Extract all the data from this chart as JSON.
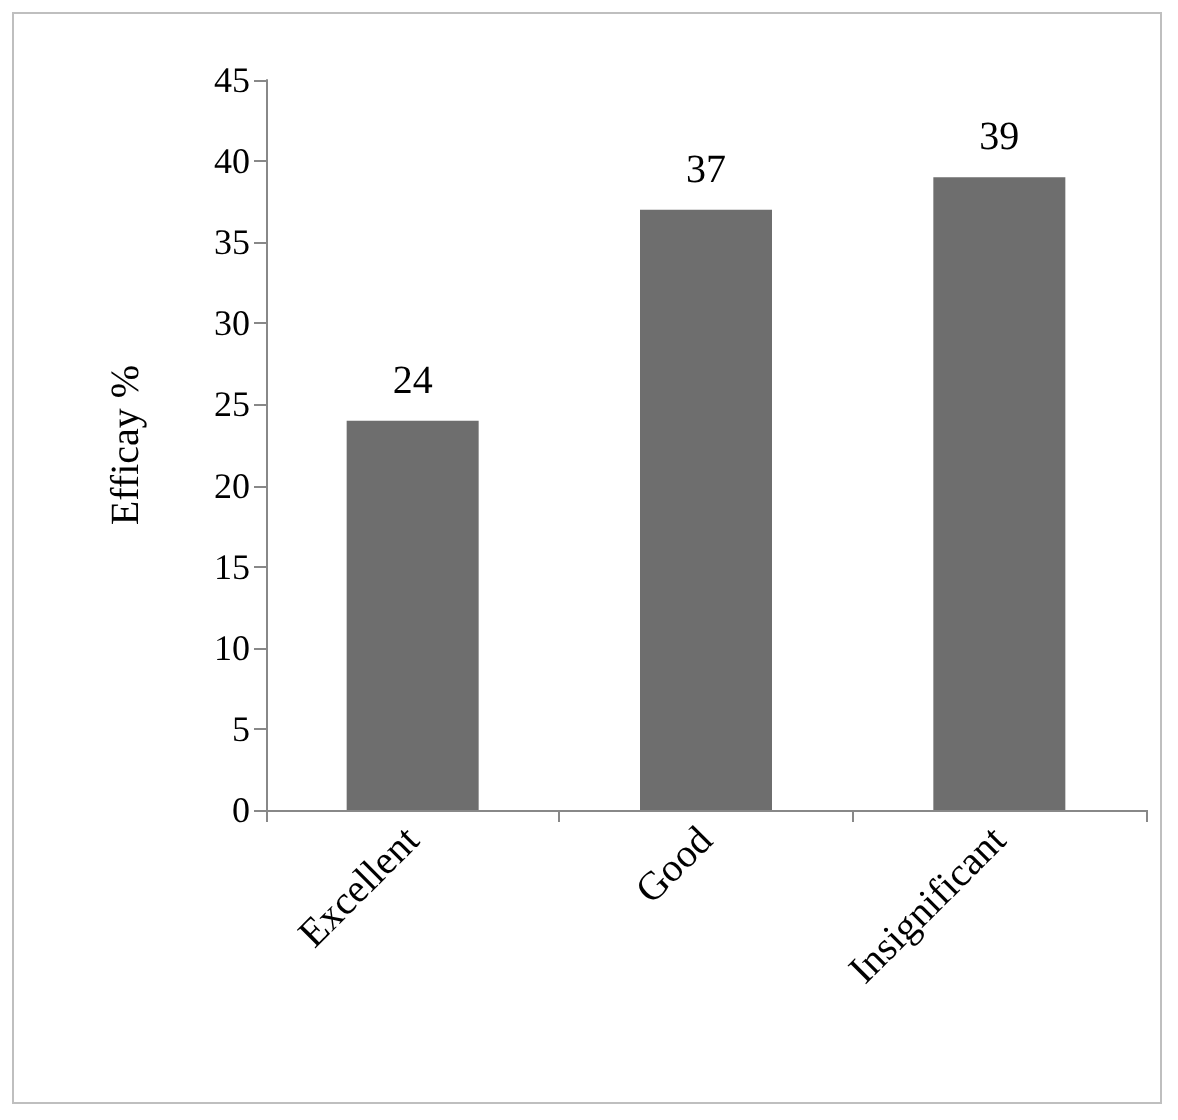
{
  "chart_data": {
    "type": "bar",
    "ylabel": "Efficay %",
    "categories": [
      "Excellent",
      "Good",
      "Insignificant"
    ],
    "values": [
      24,
      37,
      39
    ],
    "color": "#6e6e6e",
    "ylim": [
      0,
      45
    ],
    "yticks": [
      0,
      5,
      10,
      15,
      20,
      25,
      30,
      35,
      40,
      45
    ],
    "grid": false,
    "data_labels": true
  }
}
